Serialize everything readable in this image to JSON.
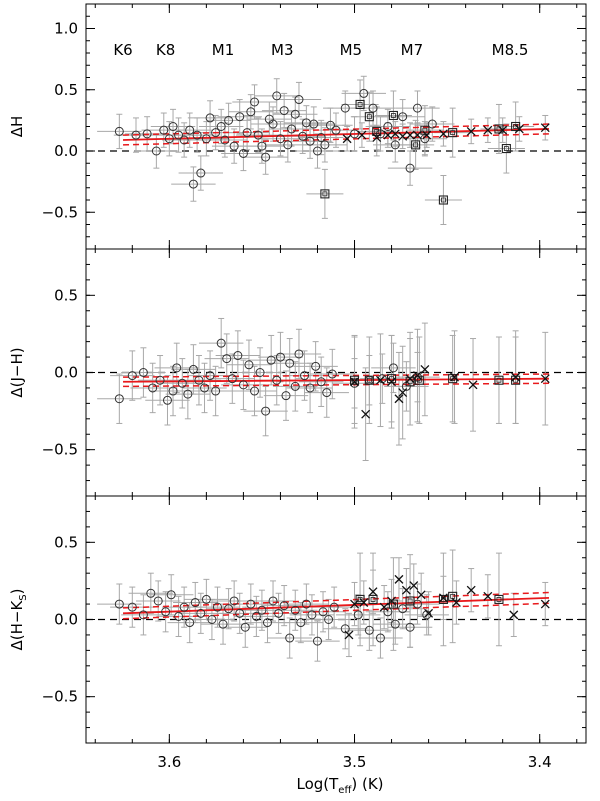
{
  "figure": {
    "xlabel": "Log(T",
    "xlabel_sub": "eff",
    "xlabel_tail": ") (K)"
  },
  "chart_data": [
    {
      "type": "scatter",
      "ylabel": "ΔH",
      "xlim": [
        3.645,
        3.375
      ],
      "ylim": [
        -0.8,
        1.2
      ],
      "x_ticks": [
        3.6,
        3.5,
        3.4
      ],
      "x_tick_labels": [
        "3.6",
        "3.5",
        "3.4"
      ],
      "y_ticks": [
        -0.5,
        0.0,
        0.5,
        1.0
      ],
      "y_tick_labels": [
        "−0.5",
        "0.0",
        "0.5",
        "1.0"
      ],
      "spectral_types": [
        {
          "label": "K6",
          "x": 3.625
        },
        {
          "label": "K8",
          "x": 3.602
        },
        {
          "label": "M1",
          "x": 3.571
        },
        {
          "label": "M3",
          "x": 3.539
        },
        {
          "label": "M5",
          "x": 3.502
        },
        {
          "label": "M7",
          "x": 3.469
        },
        {
          "label": "M8.5",
          "x": 3.416
        }
      ],
      "zero_line": 0.0,
      "fit": {
        "x": [
          3.625,
          3.395
        ],
        "y": [
          0.09,
          0.18
        ],
        "band": 0.04
      },
      "series": [
        {
          "marker": "circle",
          "err_y": 0.14,
          "err_x": 0.012,
          "points": [
            [
              3.627,
              0.16
            ],
            [
              3.618,
              0.13
            ],
            [
              3.612,
              0.14
            ],
            [
              3.607,
              0.0
            ],
            [
              3.603,
              0.17
            ],
            [
              3.6,
              0.1
            ],
            [
              3.598,
              0.2
            ],
            [
              3.595,
              0.13
            ],
            [
              3.592,
              0.09
            ],
            [
              3.589,
              0.17
            ],
            [
              3.587,
              -0.27
            ],
            [
              3.585,
              0.13
            ],
            [
              3.583,
              -0.18
            ],
            [
              3.58,
              0.1
            ],
            [
              3.578,
              0.27
            ],
            [
              3.575,
              0.15
            ],
            [
              3.572,
              0.2
            ],
            [
              3.57,
              0.09
            ],
            [
              3.568,
              0.25
            ],
            [
              3.565,
              0.04
            ],
            [
              3.562,
              0.28
            ],
            [
              3.56,
              -0.02
            ],
            [
              3.558,
              0.15
            ],
            [
              3.556,
              0.32
            ],
            [
              3.554,
              0.4
            ],
            [
              3.552,
              0.13
            ],
            [
              3.55,
              0.04
            ],
            [
              3.548,
              -0.05
            ],
            [
              3.546,
              0.26
            ],
            [
              3.544,
              0.22
            ],
            [
              3.542,
              0.45
            ],
            [
              3.54,
              0.1
            ],
            [
              3.538,
              0.33
            ],
            [
              3.536,
              0.05
            ],
            [
              3.534,
              0.18
            ],
            [
              3.532,
              0.3
            ],
            [
              3.53,
              0.42
            ],
            [
              3.528,
              0.12
            ],
            [
              3.526,
              0.23
            ],
            [
              3.524,
              0.08
            ],
            [
              3.522,
              0.22
            ],
            [
              3.52,
              0.0
            ],
            [
              3.518,
              0.11
            ],
            [
              3.516,
              0.05
            ],
            [
              3.513,
              0.21
            ],
            [
              3.51,
              0.17
            ],
            [
              3.505,
              0.35
            ],
            [
              3.5,
              0.14
            ],
            [
              3.495,
              0.47
            ],
            [
              3.49,
              0.35
            ],
            [
              3.486,
              0.14
            ],
            [
              3.482,
              0.2
            ],
            [
              3.478,
              0.05
            ],
            [
              3.474,
              0.28
            ],
            [
              3.47,
              -0.14
            ],
            [
              3.466,
              0.35
            ],
            [
              3.462,
              0.1
            ],
            [
              3.458,
              0.22
            ]
          ]
        },
        {
          "marker": "square",
          "err_y": 0.2,
          "err_x": 0.01,
          "points": [
            [
              3.516,
              -0.35
            ],
            [
              3.497,
              0.38
            ],
            [
              3.492,
              0.28
            ],
            [
              3.488,
              0.16
            ],
            [
              3.479,
              0.29
            ],
            [
              3.467,
              0.05
            ],
            [
              3.462,
              0.17
            ],
            [
              3.452,
              -0.4
            ],
            [
              3.447,
              0.15
            ],
            [
              3.422,
              0.18
            ],
            [
              3.418,
              0.02
            ],
            [
              3.413,
              0.2
            ]
          ]
        },
        {
          "marker": "cross",
          "err_y": 0.1,
          "err_x": 0.0,
          "points": [
            [
              3.504,
              0.1
            ],
            [
              3.496,
              0.13
            ],
            [
              3.488,
              0.11
            ],
            [
              3.482,
              0.13
            ],
            [
              3.478,
              0.14
            ],
            [
              3.474,
              0.12
            ],
            [
              3.47,
              0.13
            ],
            [
              3.466,
              0.13
            ],
            [
              3.461,
              0.13
            ],
            [
              3.452,
              0.14
            ],
            [
              3.437,
              0.16
            ],
            [
              3.428,
              0.17
            ],
            [
              3.42,
              0.17
            ],
            [
              3.411,
              0.18
            ],
            [
              3.397,
              0.19
            ]
          ]
        }
      ]
    },
    {
      "type": "scatter",
      "ylabel": "Δ(J−H)",
      "xlim": [
        3.645,
        3.375
      ],
      "ylim": [
        -0.8,
        0.8
      ],
      "x_ticks": [
        3.6,
        3.5,
        3.4
      ],
      "x_tick_labels": [
        "3.6",
        "3.5",
        "3.4"
      ],
      "y_ticks": [
        -0.5,
        0.0,
        0.5
      ],
      "y_tick_labels": [
        "−0.5",
        "0.0",
        "0.5"
      ],
      "zero_line": 0.0,
      "fit": {
        "x": [
          3.625,
          3.395
        ],
        "y": [
          -0.06,
          -0.04
        ],
        "band": 0.03
      },
      "series": [
        {
          "marker": "circle",
          "err_y": 0.16,
          "err_x": 0.012,
          "points": [
            [
              3.627,
              -0.17
            ],
            [
              3.62,
              -0.02
            ],
            [
              3.614,
              0.0
            ],
            [
              3.609,
              -0.1
            ],
            [
              3.605,
              -0.05
            ],
            [
              3.601,
              -0.18
            ],
            [
              3.598,
              -0.12
            ],
            [
              3.596,
              0.03
            ],
            [
              3.593,
              -0.07
            ],
            [
              3.59,
              -0.14
            ],
            [
              3.587,
              0.02
            ],
            [
              3.584,
              -0.05
            ],
            [
              3.581,
              -0.1
            ],
            [
              3.578,
              -0.02
            ],
            [
              3.575,
              -0.12
            ],
            [
              3.572,
              0.19
            ],
            [
              3.569,
              0.09
            ],
            [
              3.566,
              -0.04
            ],
            [
              3.563,
              0.11
            ],
            [
              3.56,
              -0.08
            ],
            [
              3.557,
              0.05
            ],
            [
              3.554,
              -0.12
            ],
            [
              3.551,
              0.0
            ],
            [
              3.548,
              -0.25
            ],
            [
              3.545,
              0.08
            ],
            [
              3.542,
              -0.05
            ],
            [
              3.54,
              0.1
            ],
            [
              3.537,
              -0.15
            ],
            [
              3.535,
              0.06
            ],
            [
              3.532,
              -0.09
            ],
            [
              3.53,
              0.12
            ],
            [
              3.527,
              -0.02
            ],
            [
              3.524,
              -0.1
            ],
            [
              3.521,
              0.04
            ],
            [
              3.518,
              -0.06
            ],
            [
              3.515,
              -0.13
            ],
            [
              3.512,
              -0.01
            ],
            [
              3.5,
              -0.07
            ],
            [
              3.492,
              -0.05
            ],
            [
              3.485,
              -0.04
            ],
            [
              3.479,
              0.03
            ],
            [
              3.472,
              -0.09
            ],
            [
              3.466,
              -0.03
            ]
          ]
        },
        {
          "marker": "square",
          "err_y": 0.28,
          "err_x": 0.0,
          "points": [
            [
              3.5,
              -0.05
            ],
            [
              3.492,
              -0.05
            ],
            [
              3.48,
              -0.04
            ],
            [
              3.47,
              -0.06
            ],
            [
              3.465,
              -0.05
            ],
            [
              3.447,
              -0.04
            ],
            [
              3.422,
              -0.05
            ],
            [
              3.413,
              -0.05
            ]
          ]
        },
        {
          "marker": "cross",
          "err_y": 0.3,
          "err_x": 0.0,
          "points": [
            [
              3.5,
              -0.06
            ],
            [
              3.494,
              -0.27
            ],
            [
              3.486,
              -0.05
            ],
            [
              3.48,
              -0.06
            ],
            [
              3.476,
              -0.17
            ],
            [
              3.474,
              -0.13
            ],
            [
              3.47,
              -0.04
            ],
            [
              3.466,
              -0.02
            ],
            [
              3.462,
              0.02
            ],
            [
              3.446,
              -0.03
            ],
            [
              3.436,
              -0.08
            ],
            [
              3.413,
              -0.03
            ],
            [
              3.397,
              -0.04
            ]
          ]
        }
      ]
    },
    {
      "type": "scatter",
      "ylabel": "Δ(H−K",
      "ylabel_sub": "S",
      "ylabel_tail": ")",
      "xlim": [
        3.645,
        3.375
      ],
      "ylim": [
        -0.8,
        0.8
      ],
      "x_ticks": [
        3.6,
        3.5,
        3.4
      ],
      "x_tick_labels": [
        "3.6",
        "3.5",
        "3.4"
      ],
      "y_ticks": [
        -0.5,
        0.0,
        0.5
      ],
      "y_tick_labels": [
        "−0.5",
        "0.0",
        "0.5"
      ],
      "zero_line": 0.0,
      "fit": {
        "x": [
          3.625,
          3.395
        ],
        "y": [
          0.04,
          0.14
        ],
        "band": 0.035
      },
      "series": [
        {
          "marker": "circle",
          "err_y": 0.13,
          "err_x": 0.012,
          "points": [
            [
              3.627,
              0.1
            ],
            [
              3.62,
              0.08
            ],
            [
              3.614,
              0.03
            ],
            [
              3.61,
              0.17
            ],
            [
              3.606,
              0.12
            ],
            [
              3.602,
              0.05
            ],
            [
              3.599,
              0.16
            ],
            [
              3.595,
              0.02
            ],
            [
              3.592,
              0.08
            ],
            [
              3.589,
              -0.02
            ],
            [
              3.586,
              0.11
            ],
            [
              3.583,
              0.04
            ],
            [
              3.58,
              0.13
            ],
            [
              3.577,
              0.0
            ],
            [
              3.574,
              0.08
            ],
            [
              3.571,
              -0.03
            ],
            [
              3.568,
              0.07
            ],
            [
              3.565,
              0.12
            ],
            [
              3.562,
              0.04
            ],
            [
              3.559,
              -0.05
            ],
            [
              3.556,
              0.1
            ],
            [
              3.553,
              0.02
            ],
            [
              3.55,
              0.06
            ],
            [
              3.547,
              -0.02
            ],
            [
              3.544,
              0.12
            ],
            [
              3.541,
              0.04
            ],
            [
              3.538,
              0.09
            ],
            [
              3.535,
              -0.12
            ],
            [
              3.532,
              0.06
            ],
            [
              3.529,
              -0.02
            ],
            [
              3.526,
              0.1
            ],
            [
              3.523,
              0.03
            ],
            [
              3.52,
              -0.14
            ],
            [
              3.517,
              0.05
            ],
            [
              3.514,
              0.0
            ],
            [
              3.511,
              0.08
            ],
            [
              3.505,
              -0.06
            ],
            [
              3.498,
              0.03
            ],
            [
              3.492,
              -0.07
            ],
            [
              3.486,
              -0.12
            ],
            [
              3.482,
              0.05
            ],
            [
              3.478,
              -0.03
            ],
            [
              3.474,
              0.07
            ],
            [
              3.47,
              -0.05
            ],
            [
              3.466,
              0.1
            ],
            [
              3.461,
              0.03
            ]
          ]
        },
        {
          "marker": "square",
          "err_y": 0.3,
          "err_x": 0.0,
          "points": [
            [
              3.497,
              0.13
            ],
            [
              3.49,
              0.13
            ],
            [
              3.479,
              0.1
            ],
            [
              3.47,
              0.12
            ],
            [
              3.452,
              0.13
            ],
            [
              3.447,
              0.15
            ],
            [
              3.422,
              0.13
            ]
          ]
        },
        {
          "marker": "cross",
          "err_y": 0.14,
          "err_x": 0.0,
          "points": [
            [
              3.503,
              -0.1
            ],
            [
              3.5,
              0.1
            ],
            [
              3.495,
              0.11
            ],
            [
              3.49,
              0.18
            ],
            [
              3.484,
              0.08
            ],
            [
              3.48,
              0.12
            ],
            [
              3.476,
              0.26
            ],
            [
              3.472,
              0.19
            ],
            [
              3.468,
              0.22
            ],
            [
              3.464,
              0.16
            ],
            [
              3.46,
              0.04
            ],
            [
              3.452,
              0.14
            ],
            [
              3.445,
              0.11
            ],
            [
              3.437,
              0.19
            ],
            [
              3.428,
              0.15
            ],
            [
              3.414,
              0.03
            ],
            [
              3.397,
              0.1
            ]
          ]
        }
      ]
    }
  ]
}
